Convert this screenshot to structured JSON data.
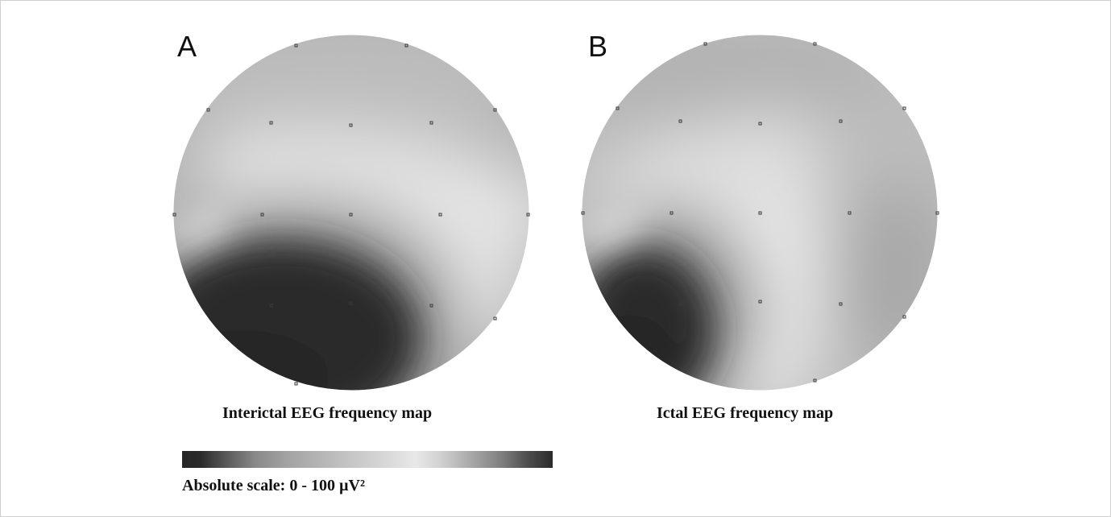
{
  "panels": [
    {
      "letter": "A",
      "caption": "Interictal EEG frequency map"
    },
    {
      "letter": "B",
      "caption": "Ictal EEG frequency map"
    }
  ],
  "scale": {
    "label": "Absolute scale: 0 - 100 µV²",
    "min": 0,
    "max": 100,
    "unit": "µV²"
  },
  "colors": {
    "dark": "#262626",
    "light": "#e6e6e6",
    "mid": "#a8a8a8",
    "electrode": "#3a3a3a"
  }
}
